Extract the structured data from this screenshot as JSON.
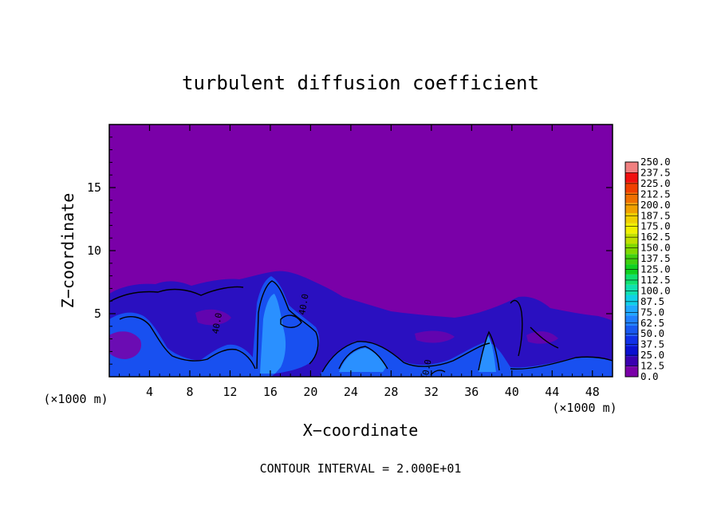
{
  "chart_data": {
    "type": "heatmap",
    "title": "turbulent diffusion coefficient",
    "xlabel": "X−coordinate",
    "ylabel": "Z−coordinate",
    "x_unit_left": "(×1000 m)",
    "x_unit_right": "(×1000 m)",
    "xlim": [
      0,
      50
    ],
    "ylim": [
      0,
      20
    ],
    "xticks": [
      4,
      8,
      12,
      16,
      20,
      24,
      28,
      32,
      36,
      40,
      44,
      48
    ],
    "yticks": [
      5,
      10,
      15
    ],
    "footer": "CONTOUR INTERVAL = 2.000E+01",
    "contour_labels": [
      {
        "text": "40.0",
        "x": 11.0,
        "y": 4.2
      },
      {
        "text": "40.0",
        "x": 19.6,
        "y": 5.7
      },
      {
        "text": "40.0",
        "x": 31.8,
        "y": 0.5
      }
    ],
    "colorbar": {
      "levels": [
        "0.0",
        "12.5",
        "25.0",
        "37.5",
        "50.0",
        "62.5",
        "75.0",
        "87.5",
        "100.0",
        "112.5",
        "125.0",
        "137.5",
        "150.0",
        "162.5",
        "175.0",
        "187.5",
        "200.0",
        "212.5",
        "225.0",
        "237.5",
        "250.0"
      ],
      "colors": [
        "#7a00a8",
        "#3a00b0",
        "#0a10d0",
        "#1030e8",
        "#1858f0",
        "#2080ff",
        "#20a8ff",
        "#10d0e8",
        "#10e0b0",
        "#10e070",
        "#10d020",
        "#40d010",
        "#80d800",
        "#c0e000",
        "#f0f000",
        "#f0d000",
        "#f0a000",
        "#f07000",
        "#f04000",
        "#f01010",
        "#f08080"
      ]
    },
    "colors": {
      "background": "#7a00a8",
      "low": "#2a10c0",
      "mid": "#1850f0",
      "high": "#2a90ff",
      "contour": "#000000"
    }
  }
}
